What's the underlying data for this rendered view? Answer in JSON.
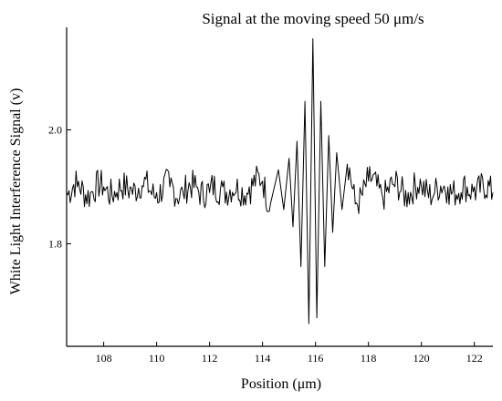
{
  "chart_data": {
    "type": "line",
    "title": "Signal at  the moving speed  50  μm/s",
    "xlabel": "Position  (μm)",
    "ylabel": "White Light Interference Signal  (v)",
    "xlim": [
      106.6,
      122.7
    ],
    "ylim": [
      1.62,
      2.18
    ],
    "x_ticks": [
      "108",
      "110",
      "112",
      "114",
      "116",
      "118",
      "120",
      "122"
    ],
    "y_ticks": [
      "1.8",
      "2.0"
    ],
    "grid": false,
    "series": [
      {
        "x": [
          106.6,
          107.0,
          107.5,
          108.0,
          108.5,
          109.0,
          109.5,
          110.0,
          110.5,
          111.0,
          111.5,
          112.0,
          112.5,
          113.0,
          113.5,
          114.0,
          114.3,
          114.6,
          114.8,
          115.0,
          115.15,
          115.3,
          115.45,
          115.6,
          115.75,
          115.9,
          116.05,
          116.2,
          116.35,
          116.5,
          116.65,
          116.8,
          117.0,
          117.2,
          117.5,
          118.0,
          118.5,
          119.0,
          119.5,
          120.0,
          120.5,
          121.0,
          121.5,
          122.0,
          122.7
        ],
        "values": [
          1.89,
          1.9,
          1.89,
          1.9,
          1.89,
          1.9,
          1.9,
          1.89,
          1.9,
          1.89,
          1.9,
          1.89,
          1.9,
          1.89,
          1.9,
          1.91,
          1.87,
          1.93,
          1.86,
          1.95,
          1.83,
          1.98,
          1.76,
          2.05,
          1.66,
          2.16,
          1.67,
          2.05,
          1.76,
          1.99,
          1.82,
          1.96,
          1.86,
          1.94,
          1.87,
          1.91,
          1.89,
          1.9,
          1.89,
          1.9,
          1.89,
          1.9,
          1.89,
          1.9,
          1.89
        ]
      }
    ]
  }
}
